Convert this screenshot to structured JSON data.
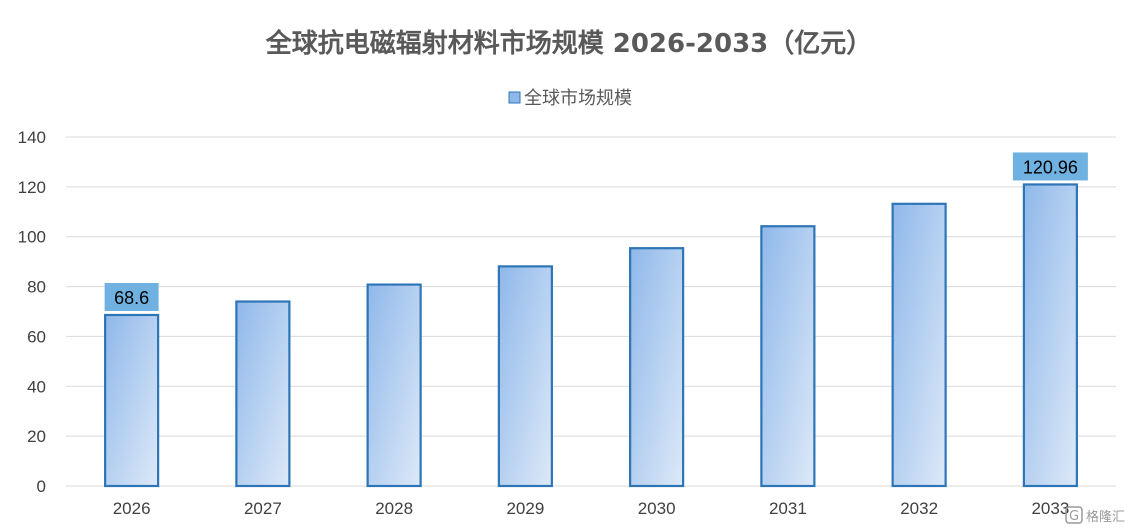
{
  "chart_data": {
    "type": "bar",
    "title": "全球抗电磁辐射材料市场规模 2026-2033（亿元）",
    "categories": [
      "2026",
      "2027",
      "2028",
      "2029",
      "2030",
      "2031",
      "2032",
      "2033"
    ],
    "series": [
      {
        "name": "全球市场规模",
        "values": [
          68.6,
          74,
          80.8,
          88.1,
          95.4,
          104.2,
          113.2,
          120.96
        ]
      }
    ],
    "data_labels": [
      {
        "category": "2026",
        "text": "68.6"
      },
      {
        "category": "2033",
        "text": "120.96"
      }
    ],
    "ylim": [
      0,
      140
    ],
    "yticks": [
      0,
      20,
      40,
      60,
      80,
      100,
      120,
      140
    ],
    "grid": true,
    "legend_position": "top",
    "colors": {
      "bar_fill_start": "#8fb8ea",
      "bar_fill_end": "#dde9f8",
      "bar_stroke": "#2e75b6",
      "label_box": "#6fb1e1",
      "grid": "#d9d9d9",
      "title": "#595959",
      "axis_text": "#404040"
    }
  },
  "watermark": {
    "text": "格隆汇",
    "icon": "g-logo-icon"
  }
}
